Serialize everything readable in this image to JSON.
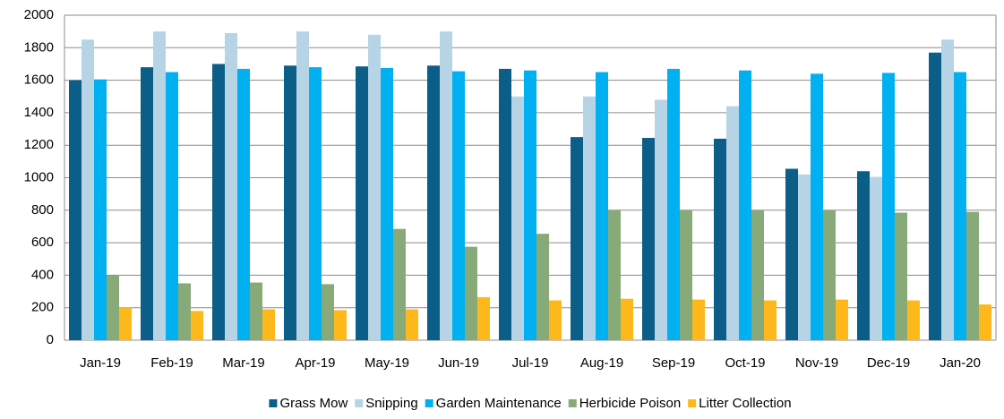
{
  "chart_data": {
    "type": "bar",
    "categories": [
      "Jan-19",
      "Feb-19",
      "Mar-19",
      "Apr-19",
      "May-19",
      "Jun-19",
      "Jul-19",
      "Aug-19",
      "Sep-19",
      "Oct-19",
      "Nov-19",
      "Dec-19",
      "Jan-20"
    ],
    "series": [
      {
        "name": "Grass Mow",
        "color": "#0b5e87",
        "values": [
          1600,
          1680,
          1700,
          1690,
          1685,
          1690,
          1670,
          1250,
          1245,
          1240,
          1055,
          1040,
          1770
        ]
      },
      {
        "name": "Snipping",
        "color": "#b6d4e6",
        "values": [
          1850,
          1900,
          1890,
          1900,
          1880,
          1900,
          1500,
          1500,
          1480,
          1440,
          1020,
          1005,
          1850
        ]
      },
      {
        "name": "Garden Maintenance",
        "color": "#00b0f0",
        "values": [
          1605,
          1650,
          1670,
          1680,
          1675,
          1655,
          1660,
          1650,
          1670,
          1660,
          1640,
          1645,
          1650
        ]
      },
      {
        "name": "Herbicide Poison",
        "color": "#88aa78",
        "values": [
          400,
          350,
          355,
          345,
          685,
          575,
          655,
          800,
          800,
          800,
          800,
          785,
          790
        ]
      },
      {
        "name": "Litter Collection",
        "color": "#ffb81c",
        "values": [
          200,
          180,
          190,
          185,
          190,
          265,
          245,
          255,
          250,
          245,
          250,
          245,
          220
        ]
      }
    ],
    "ylim": [
      0,
      2000
    ],
    "yticks": [
      0,
      200,
      400,
      600,
      800,
      1000,
      1200,
      1400,
      1600,
      1800,
      2000
    ],
    "grid": true,
    "legend": "bottom"
  }
}
